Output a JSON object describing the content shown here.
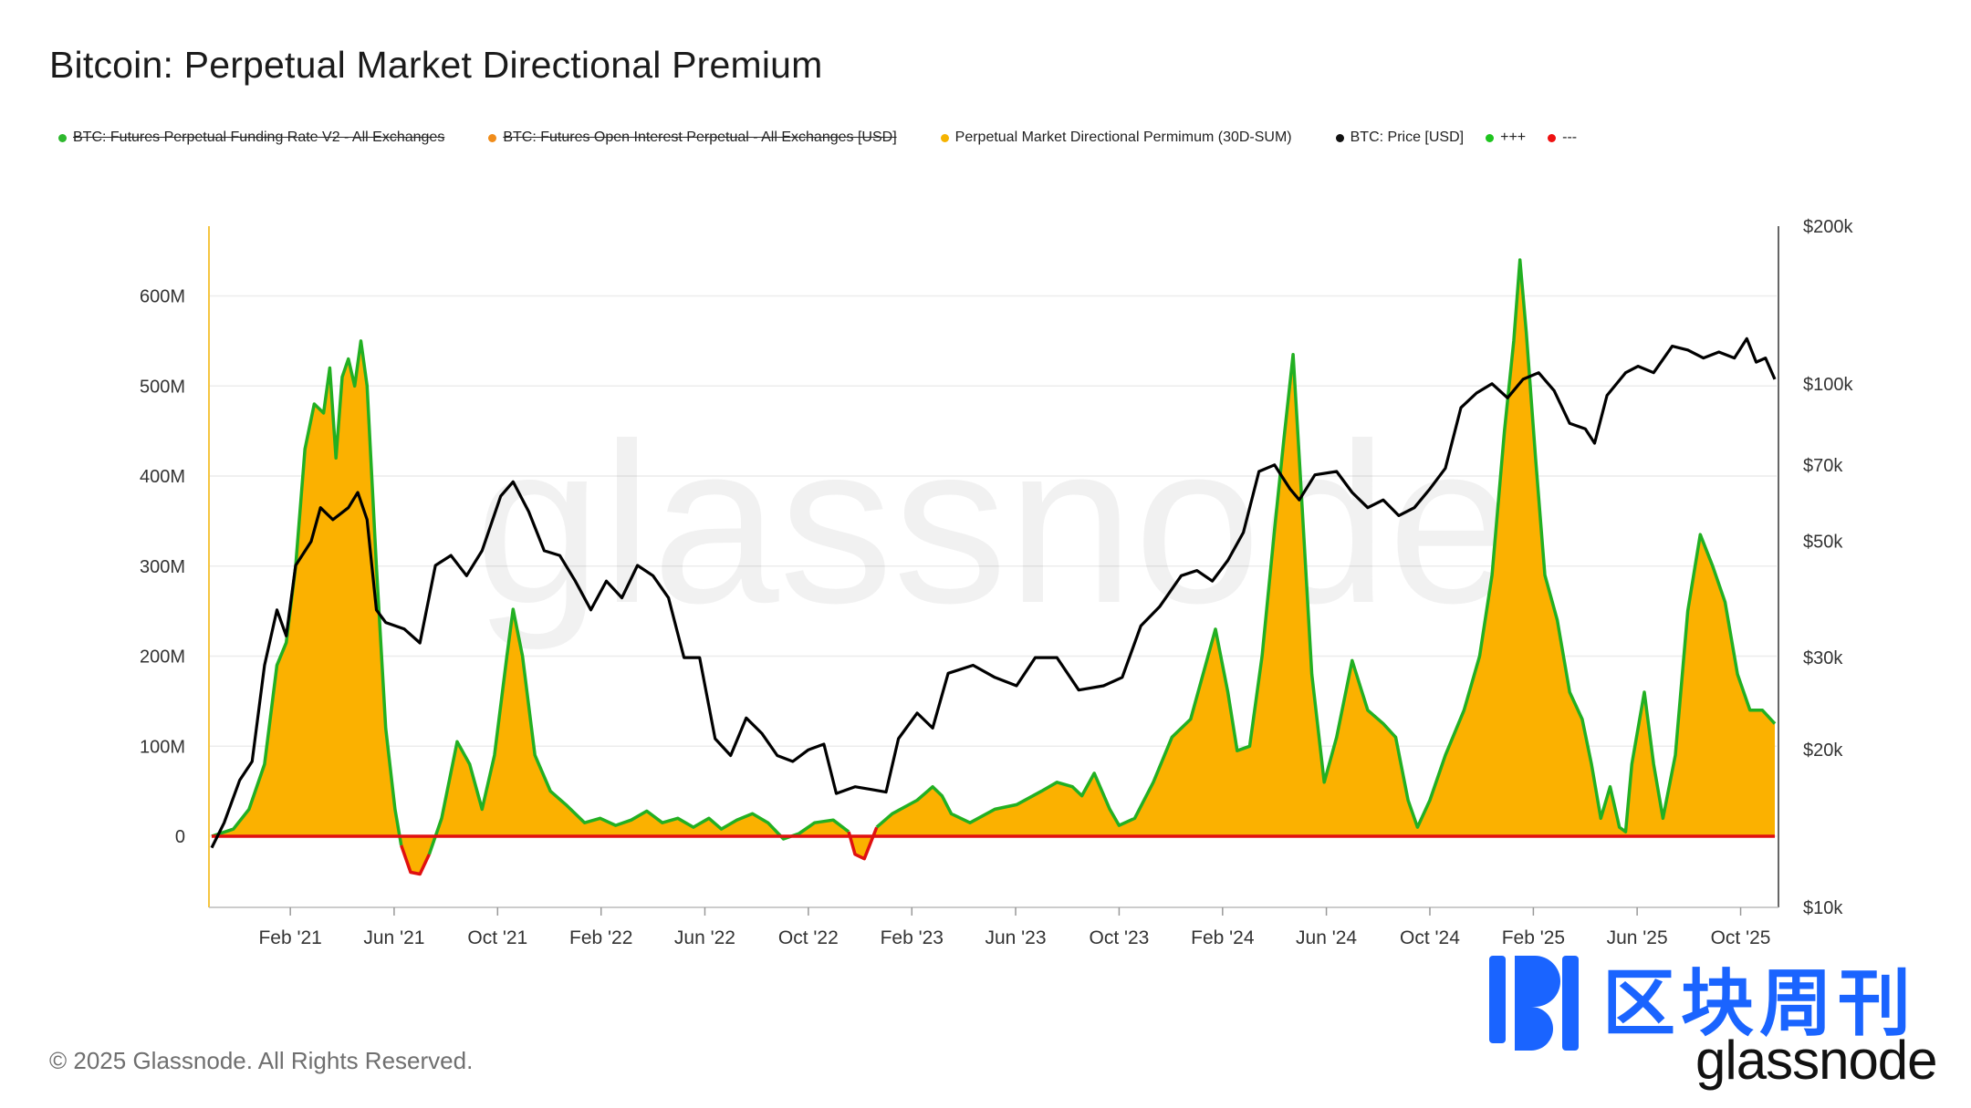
{
  "title": "Bitcoin: Perpetual Market Directional Premium",
  "legend": [
    {
      "label": "BTC: Futures Perpetual Funding Rate V2 - All Exchanges",
      "color": "#2db82d",
      "struck": true
    },
    {
      "label": "BTC: Futures Open Interest Perpetual - All Exchanges [USD]",
      "color": "#f08c1a",
      "struck": true
    },
    {
      "label": "Perpetual Market Directional Permimum (30D-SUM)",
      "color": "#f5b300",
      "struck": false
    },
    {
      "label": "BTC: Price [USD]",
      "color": "#111111",
      "struck": false
    },
    {
      "label": "+++",
      "color": "#1ec41e",
      "struck": false
    },
    {
      "label": "---",
      "color": "#ee1111",
      "struck": false
    }
  ],
  "watermark": "glassnode",
  "copyright": "© 2025 Glassnode. All Rights Reserved.",
  "brand": {
    "cn": "区块周刊",
    "en": "glassnode"
  },
  "colors": {
    "fill": "#fbb100",
    "positive": "#22b022",
    "negative": "#e01010",
    "price": "#000000"
  },
  "chart_data": {
    "type": "area",
    "title": "Bitcoin: Perpetual Market Directional Premium",
    "x_start": 2020.83,
    "x_end": 2025.86,
    "x_ticks": [
      {
        "label": "Feb '21",
        "value": 2021.083
      },
      {
        "label": "Jun '21",
        "value": 2021.417
      },
      {
        "label": "Oct '21",
        "value": 2021.75
      },
      {
        "label": "Feb '22",
        "value": 2022.083
      },
      {
        "label": "Jun '22",
        "value": 2022.417
      },
      {
        "label": "Oct '22",
        "value": 2022.75
      },
      {
        "label": "Feb '23",
        "value": 2023.083
      },
      {
        "label": "Jun '23",
        "value": 2023.417
      },
      {
        "label": "Oct '23",
        "value": 2023.75
      },
      {
        "label": "Feb '24",
        "value": 2024.083
      },
      {
        "label": "Jun '24",
        "value": 2024.417
      },
      {
        "label": "Oct '24",
        "value": 2024.75
      },
      {
        "label": "Feb '25",
        "value": 2025.083
      },
      {
        "label": "Jun '25",
        "value": 2025.417
      },
      {
        "label": "Oct '25",
        "value": 2025.75
      }
    ],
    "y_left": {
      "min": -80,
      "max": 680,
      "unit": "M USD",
      "ticks": [
        {
          "label": "0",
          "value": 0
        },
        {
          "label": "100M",
          "value": 100
        },
        {
          "label": "200M",
          "value": 200
        },
        {
          "label": "300M",
          "value": 300
        },
        {
          "label": "400M",
          "value": 400
        },
        {
          "label": "500M",
          "value": 500
        },
        {
          "label": "600M",
          "value": 600
        }
      ]
    },
    "y_right": {
      "scale": "log",
      "min": 10000,
      "max": 200000,
      "ticks": [
        {
          "label": "$10k",
          "value": 10000
        },
        {
          "label": "$20k",
          "value": 20000
        },
        {
          "label": "$30k",
          "value": 30000
        },
        {
          "label": "$50k",
          "value": 50000
        },
        {
          "label": "$70k",
          "value": 70000
        },
        {
          "label": "$100k",
          "value": 100000
        },
        {
          "label": "$200k",
          "value": 200000
        }
      ]
    },
    "series": [
      {
        "name": "Perpetual Market Directional Permimum (30D-SUM)",
        "axis": "left",
        "unit": "M USD",
        "points": [
          [
            2020.83,
            0
          ],
          [
            2020.9,
            8
          ],
          [
            2020.95,
            30
          ],
          [
            2021.0,
            80
          ],
          [
            2021.04,
            190
          ],
          [
            2021.07,
            215
          ],
          [
            2021.1,
            300
          ],
          [
            2021.13,
            430
          ],
          [
            2021.16,
            480
          ],
          [
            2021.19,
            470
          ],
          [
            2021.21,
            520
          ],
          [
            2021.23,
            420
          ],
          [
            2021.25,
            510
          ],
          [
            2021.27,
            530
          ],
          [
            2021.29,
            500
          ],
          [
            2021.31,
            550
          ],
          [
            2021.33,
            500
          ],
          [
            2021.36,
            300
          ],
          [
            2021.39,
            120
          ],
          [
            2021.42,
            30
          ],
          [
            2021.44,
            -10
          ],
          [
            2021.47,
            -40
          ],
          [
            2021.5,
            -42
          ],
          [
            2021.53,
            -20
          ],
          [
            2021.57,
            20
          ],
          [
            2021.62,
            105
          ],
          [
            2021.66,
            80
          ],
          [
            2021.7,
            30
          ],
          [
            2021.74,
            90
          ],
          [
            2021.78,
            200
          ],
          [
            2021.8,
            252
          ],
          [
            2021.83,
            200
          ],
          [
            2021.87,
            90
          ],
          [
            2021.92,
            50
          ],
          [
            2021.97,
            35
          ],
          [
            2022.03,
            15
          ],
          [
            2022.08,
            20
          ],
          [
            2022.13,
            12
          ],
          [
            2022.18,
            18
          ],
          [
            2022.23,
            28
          ],
          [
            2022.28,
            15
          ],
          [
            2022.33,
            20
          ],
          [
            2022.38,
            10
          ],
          [
            2022.43,
            20
          ],
          [
            2022.47,
            8
          ],
          [
            2022.52,
            18
          ],
          [
            2022.57,
            25
          ],
          [
            2022.62,
            15
          ],
          [
            2022.67,
            -3
          ],
          [
            2022.72,
            3
          ],
          [
            2022.77,
            15
          ],
          [
            2022.83,
            18
          ],
          [
            2022.88,
            5
          ],
          [
            2022.9,
            -20
          ],
          [
            2022.93,
            -25
          ],
          [
            2022.97,
            10
          ],
          [
            2023.02,
            25
          ],
          [
            2023.1,
            40
          ],
          [
            2023.15,
            55
          ],
          [
            2023.18,
            45
          ],
          [
            2023.21,
            25
          ],
          [
            2023.27,
            15
          ],
          [
            2023.35,
            30
          ],
          [
            2023.42,
            35
          ],
          [
            2023.5,
            50
          ],
          [
            2023.55,
            60
          ],
          [
            2023.6,
            55
          ],
          [
            2023.63,
            45
          ],
          [
            2023.67,
            70
          ],
          [
            2023.72,
            30
          ],
          [
            2023.75,
            12
          ],
          [
            2023.8,
            20
          ],
          [
            2023.86,
            60
          ],
          [
            2023.92,
            110
          ],
          [
            2023.98,
            130
          ],
          [
            2024.02,
            180
          ],
          [
            2024.06,
            230
          ],
          [
            2024.1,
            160
          ],
          [
            2024.13,
            95
          ],
          [
            2024.17,
            100
          ],
          [
            2024.21,
            200
          ],
          [
            2024.25,
            340
          ],
          [
            2024.28,
            440
          ],
          [
            2024.31,
            535
          ],
          [
            2024.33,
            420
          ],
          [
            2024.37,
            180
          ],
          [
            2024.41,
            60
          ],
          [
            2024.45,
            110
          ],
          [
            2024.5,
            195
          ],
          [
            2024.55,
            140
          ],
          [
            2024.6,
            125
          ],
          [
            2024.64,
            110
          ],
          [
            2024.68,
            40
          ],
          [
            2024.71,
            10
          ],
          [
            2024.75,
            40
          ],
          [
            2024.8,
            90
          ],
          [
            2024.86,
            140
          ],
          [
            2024.91,
            200
          ],
          [
            2024.95,
            290
          ],
          [
            2024.99,
            450
          ],
          [
            2025.02,
            550
          ],
          [
            2025.04,
            640
          ],
          [
            2025.06,
            560
          ],
          [
            2025.09,
            420
          ],
          [
            2025.12,
            290
          ],
          [
            2025.16,
            240
          ],
          [
            2025.2,
            160
          ],
          [
            2025.24,
            130
          ],
          [
            2025.27,
            80
          ],
          [
            2025.3,
            20
          ],
          [
            2025.33,
            55
          ],
          [
            2025.36,
            10
          ],
          [
            2025.38,
            5
          ],
          [
            2025.4,
            80
          ],
          [
            2025.44,
            160
          ],
          [
            2025.47,
            80
          ],
          [
            2025.5,
            20
          ],
          [
            2025.54,
            90
          ],
          [
            2025.58,
            250
          ],
          [
            2025.62,
            335
          ],
          [
            2025.66,
            300
          ],
          [
            2025.7,
            260
          ],
          [
            2025.74,
            180
          ],
          [
            2025.78,
            140
          ],
          [
            2025.82,
            140
          ],
          [
            2025.86,
            125
          ]
        ]
      },
      {
        "name": "BTC: Price [USD]",
        "axis": "right",
        "unit": "USD",
        "points": [
          [
            2020.83,
            13000
          ],
          [
            2020.87,
            14500
          ],
          [
            2020.92,
            17500
          ],
          [
            2020.96,
            19000
          ],
          [
            2021.0,
            29000
          ],
          [
            2021.04,
            37000
          ],
          [
            2021.07,
            33000
          ],
          [
            2021.1,
            45000
          ],
          [
            2021.15,
            50000
          ],
          [
            2021.18,
            58000
          ],
          [
            2021.22,
            55000
          ],
          [
            2021.27,
            58000
          ],
          [
            2021.3,
            62000
          ],
          [
            2021.33,
            55000
          ],
          [
            2021.36,
            37000
          ],
          [
            2021.39,
            35000
          ],
          [
            2021.45,
            34000
          ],
          [
            2021.5,
            32000
          ],
          [
            2021.55,
            45000
          ],
          [
            2021.6,
            47000
          ],
          [
            2021.65,
            43000
          ],
          [
            2021.7,
            48000
          ],
          [
            2021.76,
            61000
          ],
          [
            2021.8,
            65000
          ],
          [
            2021.85,
            57000
          ],
          [
            2021.9,
            48000
          ],
          [
            2021.95,
            47000
          ],
          [
            2022.0,
            42000
          ],
          [
            2022.05,
            37000
          ],
          [
            2022.1,
            42000
          ],
          [
            2022.15,
            39000
          ],
          [
            2022.2,
            45000
          ],
          [
            2022.25,
            43000
          ],
          [
            2022.3,
            39000
          ],
          [
            2022.35,
            30000
          ],
          [
            2022.4,
            30000
          ],
          [
            2022.45,
            21000
          ],
          [
            2022.5,
            19500
          ],
          [
            2022.55,
            23000
          ],
          [
            2022.6,
            21500
          ],
          [
            2022.65,
            19500
          ],
          [
            2022.7,
            19000
          ],
          [
            2022.75,
            20000
          ],
          [
            2022.8,
            20500
          ],
          [
            2022.84,
            16500
          ],
          [
            2022.9,
            17000
          ],
          [
            2022.95,
            16800
          ],
          [
            2023.0,
            16600
          ],
          [
            2023.04,
            21000
          ],
          [
            2023.1,
            23500
          ],
          [
            2023.15,
            22000
          ],
          [
            2023.2,
            28000
          ],
          [
            2023.28,
            29000
          ],
          [
            2023.35,
            27500
          ],
          [
            2023.42,
            26500
          ],
          [
            2023.48,
            30000
          ],
          [
            2023.55,
            30000
          ],
          [
            2023.62,
            26000
          ],
          [
            2023.7,
            26500
          ],
          [
            2023.76,
            27500
          ],
          [
            2023.82,
            34500
          ],
          [
            2023.88,
            37500
          ],
          [
            2023.95,
            43000
          ],
          [
            2024.0,
            44000
          ],
          [
            2024.05,
            42000
          ],
          [
            2024.1,
            46000
          ],
          [
            2024.15,
            52000
          ],
          [
            2024.2,
            68000
          ],
          [
            2024.25,
            70000
          ],
          [
            2024.3,
            63000
          ],
          [
            2024.33,
            60000
          ],
          [
            2024.38,
            67000
          ],
          [
            2024.45,
            68000
          ],
          [
            2024.5,
            62000
          ],
          [
            2024.55,
            58000
          ],
          [
            2024.6,
            60000
          ],
          [
            2024.65,
            56000
          ],
          [
            2024.7,
            58000
          ],
          [
            2024.75,
            63000
          ],
          [
            2024.8,
            69000
          ],
          [
            2024.85,
            90000
          ],
          [
            2024.9,
            96000
          ],
          [
            2024.95,
            100000
          ],
          [
            2025.0,
            94000
          ],
          [
            2025.05,
            102000
          ],
          [
            2025.1,
            105000
          ],
          [
            2025.15,
            97000
          ],
          [
            2025.2,
            84000
          ],
          [
            2025.25,
            82000
          ],
          [
            2025.28,
            77000
          ],
          [
            2025.32,
            95000
          ],
          [
            2025.38,
            105000
          ],
          [
            2025.42,
            108000
          ],
          [
            2025.47,
            105000
          ],
          [
            2025.53,
            118000
          ],
          [
            2025.58,
            116000
          ],
          [
            2025.63,
            112000
          ],
          [
            2025.68,
            115000
          ],
          [
            2025.73,
            112000
          ],
          [
            2025.77,
            122000
          ],
          [
            2025.8,
            110000
          ],
          [
            2025.83,
            112000
          ],
          [
            2025.86,
            102000
          ]
        ]
      }
    ]
  }
}
